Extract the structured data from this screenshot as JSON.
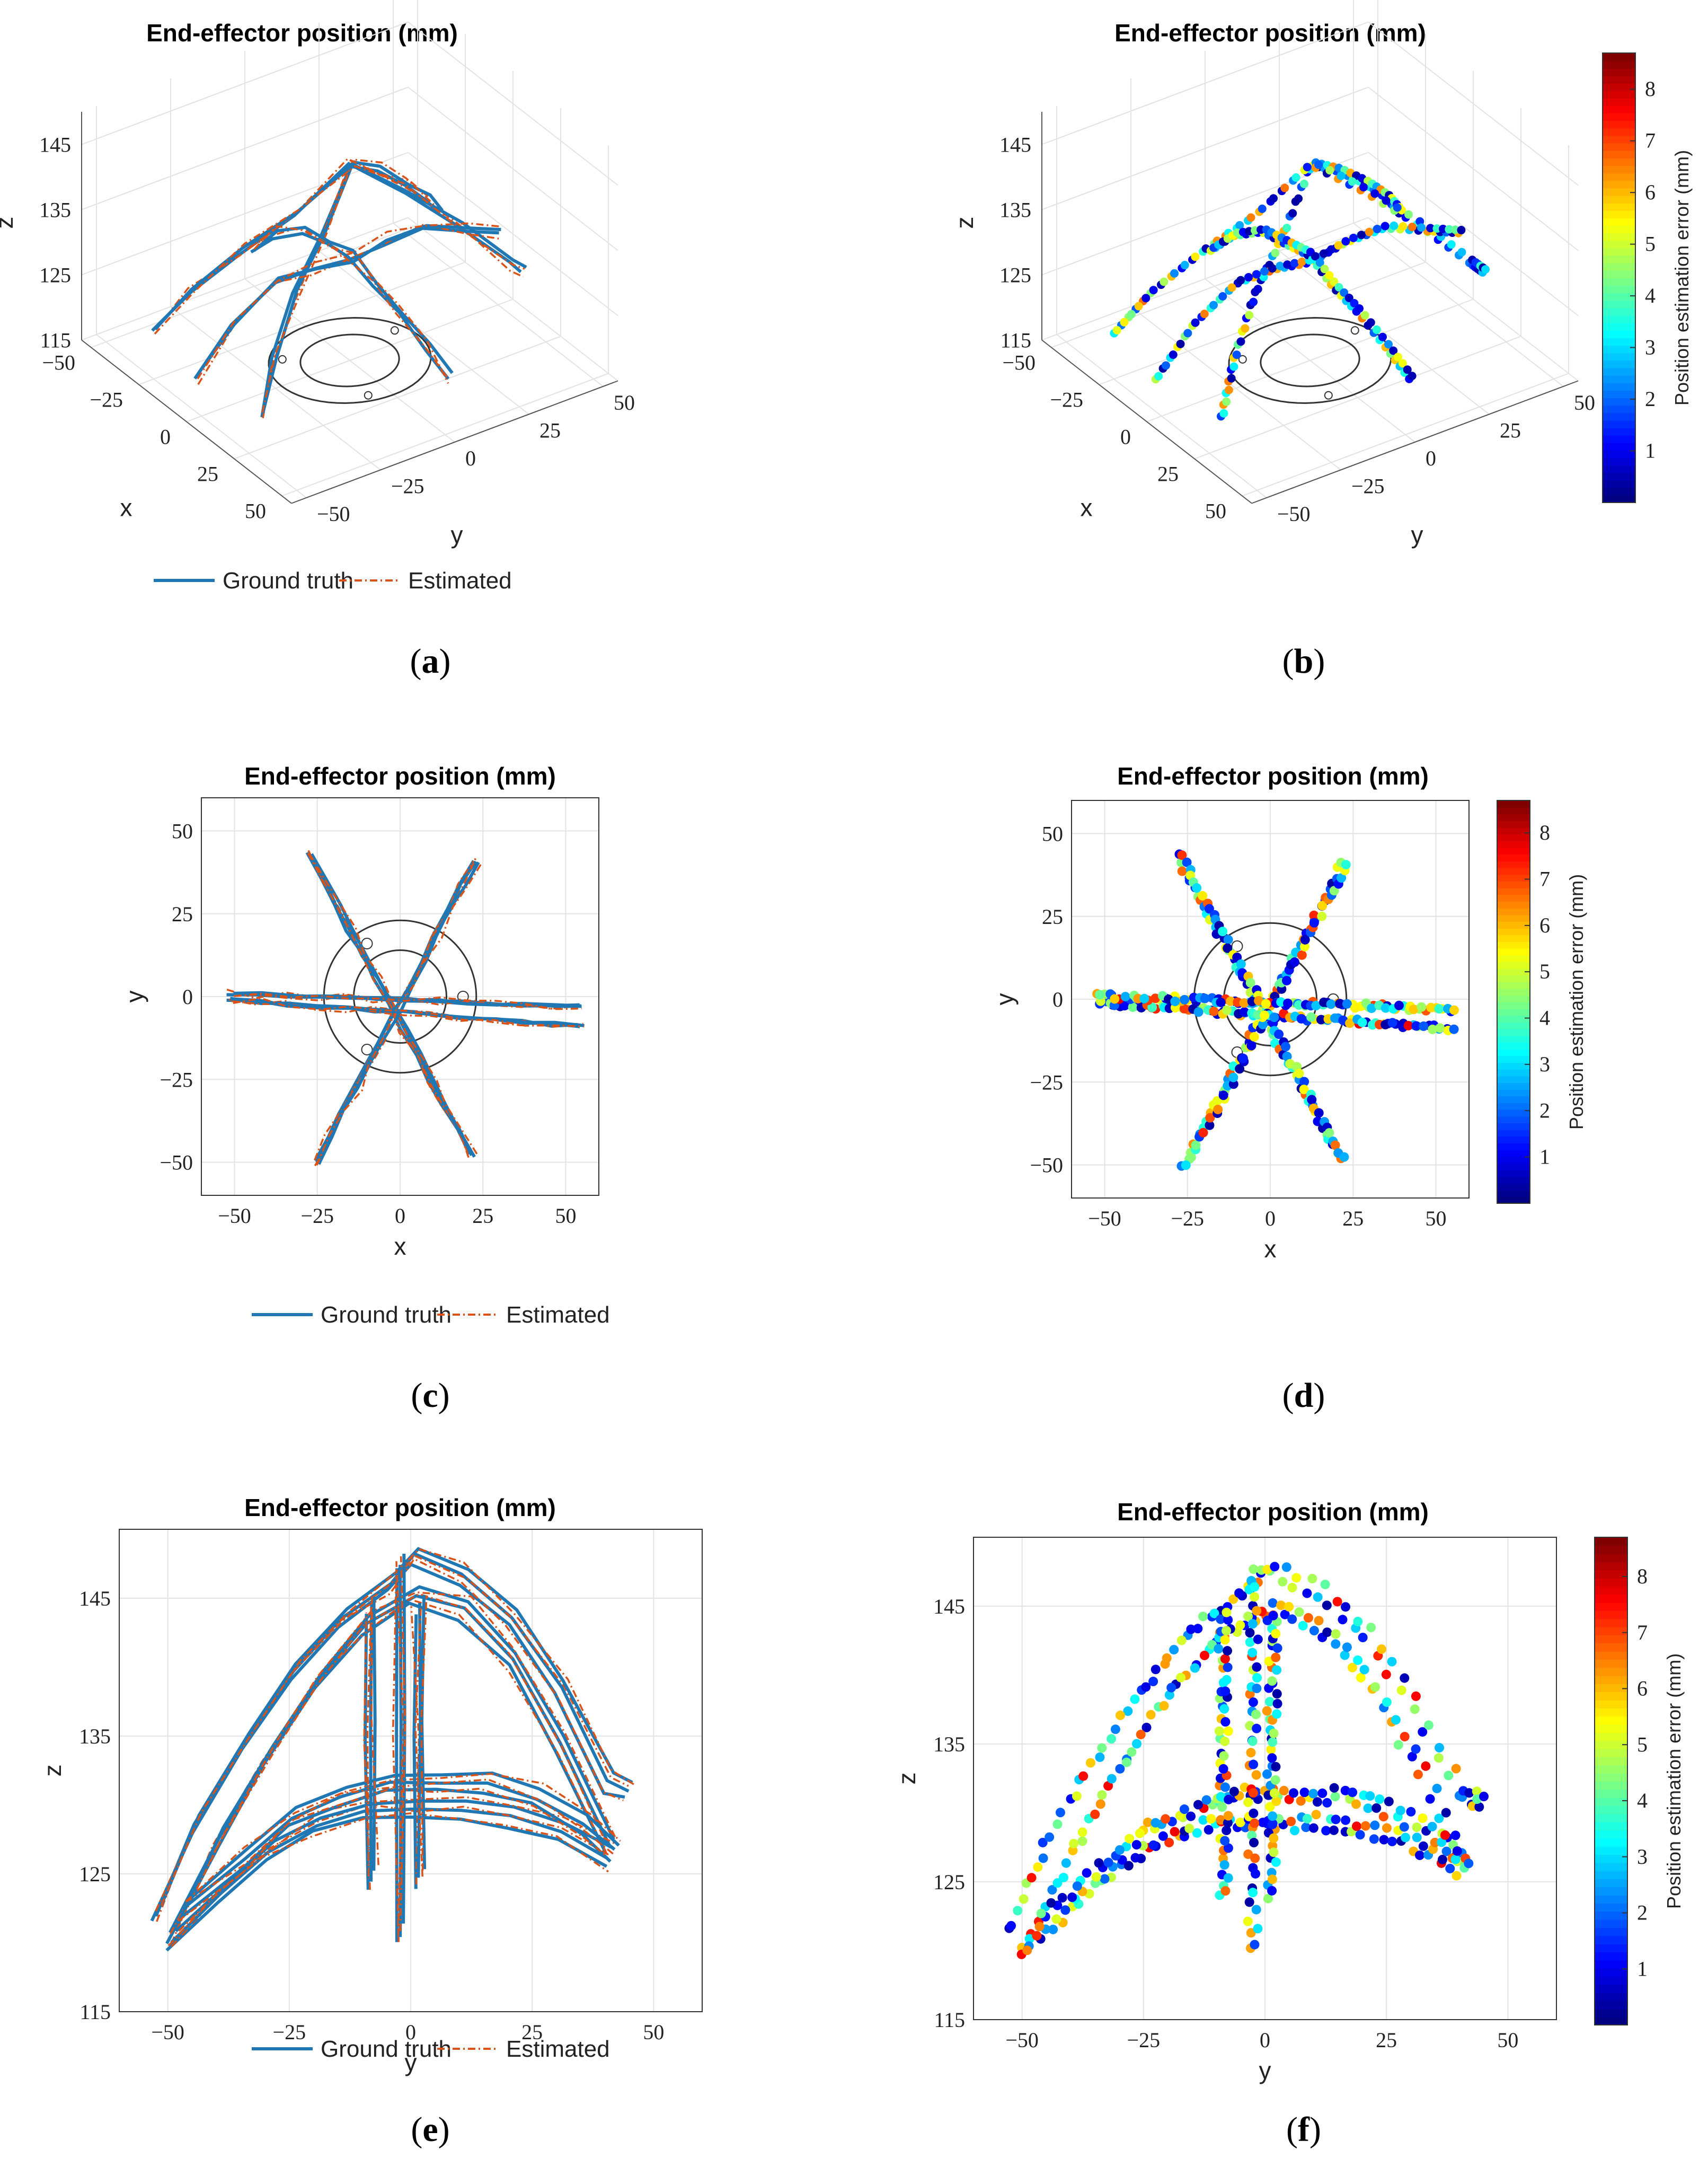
{
  "captions": {
    "a": "a",
    "b": "b",
    "c": "c",
    "d": "d",
    "e": "e",
    "f": "f"
  },
  "legend": {
    "ground_truth": "Ground truth",
    "estimated": "Estimated"
  },
  "colors": {
    "ground_truth": "#1f77b4",
    "estimated": "#d95319",
    "base_ring": "#333333"
  },
  "chart_data": [
    {
      "panel": "a",
      "type": "line",
      "view": "3d",
      "title": "End-effector position (mm)",
      "xlabel": "x",
      "ylabel": "y",
      "zlabel": "z",
      "xticks": [
        -50,
        -25,
        0,
        25,
        50
      ],
      "yticks": [
        -50,
        -25,
        0,
        25,
        50
      ],
      "zticks": [
        115,
        125,
        135,
        145
      ],
      "xlim": [
        -55,
        55
      ],
      "ylim": [
        -55,
        55
      ],
      "zlim": [
        115,
        150
      ],
      "series": [
        {
          "name": "Ground truth",
          "style": "solid"
        },
        {
          "name": "Estimated",
          "style": "dash-dot"
        }
      ],
      "trajectories": [
        {
          "x": [
            28,
            22,
            14,
            7,
            0,
            -7,
            -14,
            -22,
            -28
          ],
          "y": [
            -48,
            -40,
            -28,
            -14,
            0,
            14,
            28,
            40,
            48
          ],
          "z": [
            121,
            127,
            133,
            138,
            145,
            140,
            134,
            128,
            123
          ]
        },
        {
          "x": [
            -28,
            -22,
            -14,
            -7,
            0,
            7,
            14,
            22,
            22
          ],
          "y": [
            -48,
            -40,
            -28,
            -14,
            0,
            14,
            28,
            40,
            44
          ],
          "z": [
            121,
            127,
            133,
            138,
            145,
            140,
            134,
            128,
            126
          ]
        },
        {
          "x": [
            0,
            0,
            0,
            0,
            0,
            0,
            0,
            0,
            0
          ],
          "y": [
            -52,
            -40,
            -25,
            -12,
            0,
            12,
            25,
            40,
            50
          ],
          "z": [
            121,
            127,
            131,
            131,
            130,
            131,
            131,
            128,
            126
          ]
        },
        {
          "x": [
            -52,
            -40,
            -25,
            -12,
            0,
            12,
            25,
            40,
            52
          ],
          "y": [
            0,
            0,
            0,
            0,
            0,
            0,
            0,
            0,
            0
          ],
          "z": [
            120,
            125,
            129,
            130,
            131,
            129,
            128,
            126,
            124
          ]
        }
      ]
    },
    {
      "panel": "b",
      "type": "scatter",
      "view": "3d",
      "title": "End-effector position (mm)",
      "xlabel": "x",
      "ylabel": "y",
      "zlabel": "z",
      "xticks": [
        -50,
        -25,
        0,
        25,
        50
      ],
      "yticks": [
        -50,
        -25,
        0,
        25,
        50
      ],
      "zticks": [
        115,
        125,
        135,
        145
      ],
      "colorbar": {
        "label": "Position estimation error (mm)",
        "ticks": [
          1,
          2,
          3,
          4,
          5,
          6,
          7,
          8
        ],
        "range": [
          0,
          8.7
        ],
        "colormap": "jet"
      }
    },
    {
      "panel": "c",
      "type": "line",
      "view": "xy",
      "title": "End-effector position (mm)",
      "xlabel": "x",
      "ylabel": "y",
      "xticks": [
        -50,
        -25,
        0,
        25,
        50
      ],
      "yticks": [
        -50,
        -25,
        0,
        25,
        50
      ],
      "xlim": [
        -60,
        60
      ],
      "ylim": [
        -60,
        60
      ],
      "series": [
        {
          "name": "Ground truth",
          "style": "solid"
        },
        {
          "name": "Estimated",
          "style": "dash-dot"
        }
      ],
      "segments": [
        {
          "from": [
            -28,
            43
          ],
          "to": [
            21,
            -48
          ]
        },
        {
          "from": [
            -26,
            -50
          ],
          "to": [
            22,
            41
          ]
        },
        {
          "from": [
            -52,
            -1
          ],
          "to": [
            54,
            -9
          ]
        },
        {
          "from": [
            -52,
            1
          ],
          "to": [
            54,
            -3
          ]
        }
      ],
      "base_rings": [
        {
          "radius": 23
        },
        {
          "radius": 14
        }
      ]
    },
    {
      "panel": "d",
      "type": "scatter",
      "view": "xy",
      "title": "End-effector position (mm)",
      "xlabel": "x",
      "ylabel": "y",
      "xticks": [
        -50,
        -25,
        0,
        25,
        50
      ],
      "yticks": [
        -50,
        -25,
        0,
        25,
        50
      ],
      "xlim": [
        -60,
        60
      ],
      "ylim": [
        -60,
        60
      ],
      "colorbar": {
        "label": "Position estimation error (mm)",
        "ticks": [
          1,
          2,
          3,
          4,
          5,
          6,
          7,
          8
        ],
        "range": [
          0,
          8.7
        ],
        "colormap": "jet"
      }
    },
    {
      "panel": "e",
      "type": "line",
      "view": "yz",
      "title": "End-effector position (mm)",
      "xlabel": "y",
      "ylabel": "z",
      "xticks": [
        -50,
        -25,
        0,
        25,
        50
      ],
      "yticks": [
        115,
        125,
        135,
        145
      ],
      "xlim": [
        -60,
        60
      ],
      "ylim": [
        115,
        150
      ],
      "series": [
        {
          "name": "Ground truth",
          "style": "solid"
        },
        {
          "name": "Estimated",
          "style": "dash-dot"
        }
      ],
      "curves": [
        {
          "y": [
            -53,
            -45,
            -35,
            -25,
            -15,
            -5,
            0,
            10,
            20,
            30,
            40,
            44
          ],
          "z": [
            121.5,
            128,
            134,
            139,
            143,
            145.5,
            147.5,
            146,
            143,
            138,
            131,
            130.5
          ]
        },
        {
          "y": [
            -50,
            -40,
            -30,
            -20,
            -10,
            0,
            10,
            20,
            30,
            40
          ],
          "z": [
            120,
            127,
            133,
            138.5,
            142.5,
            144.5,
            143.5,
            140,
            134,
            126.5
          ]
        },
        {
          "y": [
            -50,
            -40,
            -30,
            -20,
            -10,
            0,
            10,
            20,
            30,
            40
          ],
          "z": [
            119.5,
            123,
            126,
            128,
            129,
            129,
            129,
            128.5,
            127.5,
            125.5
          ]
        },
        {
          "y": [
            -47,
            -35,
            -25,
            -15,
            -5,
            5,
            15,
            25,
            35,
            41
          ],
          "z": [
            122,
            125.5,
            128.5,
            130,
            131,
            131,
            131,
            130,
            128,
            126
          ]
        },
        {
          "y": [
            -3,
            -3,
            -3
          ],
          "z": [
            120,
            135,
            147
          ]
        },
        {
          "y": [
            -9,
            -9,
            -9
          ],
          "z": [
            124,
            135,
            144
          ]
        },
        {
          "y": [
            1,
            1,
            1
          ],
          "z": [
            124,
            135,
            144
          ]
        }
      ]
    },
    {
      "panel": "f",
      "type": "scatter",
      "view": "yz",
      "title": "End-effector position (mm)",
      "xlabel": "y",
      "ylabel": "z",
      "xticks": [
        -50,
        -25,
        0,
        25,
        50
      ],
      "yticks": [
        115,
        125,
        135,
        145
      ],
      "xlim": [
        -60,
        60
      ],
      "ylim": [
        115,
        150
      ],
      "colorbar": {
        "label": "Position estimation error (mm)",
        "ticks": [
          1,
          2,
          3,
          4,
          5,
          6,
          7,
          8
        ],
        "range": [
          0,
          8.7
        ],
        "colormap": "jet"
      }
    }
  ]
}
